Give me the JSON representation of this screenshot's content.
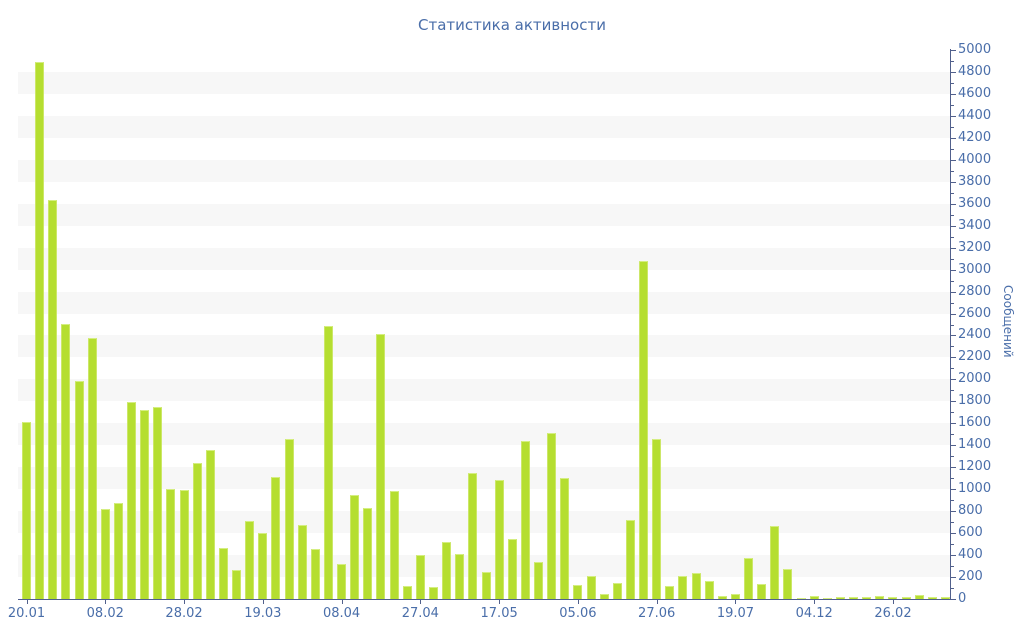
{
  "title": "Статистика активности",
  "colors": {
    "bar": "#b5de30",
    "bar_highlight": "#d5ee82",
    "axis_line": "#51608c",
    "label_text": "#4a6ea9",
    "band_gray": "#f7f7f7",
    "band_white": "#ffffff"
  },
  "chart_data": {
    "type": "bar",
    "title": "Статистика активности",
    "xlabel": "",
    "ylabel": "Сообщений",
    "ylim": [
      0,
      5000
    ],
    "y_tick_step": 200,
    "y_minor_tick_step": 100,
    "legend_position": "none",
    "grid": "alternating horizontal bands, white and light gray, one band per 200 units",
    "values": [
      1615,
      4890,
      3630,
      2500,
      1985,
      2380,
      820,
      870,
      1790,
      1720,
      1750,
      1000,
      990,
      1240,
      1360,
      460,
      265,
      710,
      605,
      1110,
      1460,
      675,
      455,
      2490,
      320,
      950,
      830,
      2410,
      980,
      120,
      405,
      110,
      520,
      410,
      1150,
      250,
      1085,
      550,
      1440,
      340,
      1515,
      1100,
      130,
      210,
      50,
      150,
      720,
      3080,
      1460,
      120,
      210,
      235,
      160,
      30,
      45,
      375,
      135,
      665,
      270,
      10,
      30,
      10,
      15,
      20,
      15,
      25,
      15,
      20,
      35,
      20,
      15
    ],
    "x_ticks": [
      {
        "bar_index": 0,
        "label": "20.01"
      },
      {
        "bar_index": 6,
        "label": "08.02"
      },
      {
        "bar_index": 12,
        "label": "28.02"
      },
      {
        "bar_index": 18,
        "label": "19.03"
      },
      {
        "bar_index": 24,
        "label": "08.04"
      },
      {
        "bar_index": 30,
        "label": "27.04"
      },
      {
        "bar_index": 36,
        "label": "17.05"
      },
      {
        "bar_index": 42,
        "label": "05.06"
      },
      {
        "bar_index": 48,
        "label": "27.06"
      },
      {
        "bar_index": 54,
        "label": "19.07"
      },
      {
        "bar_index": 60,
        "label": "04.12"
      },
      {
        "bar_index": 66,
        "label": "26.02"
      }
    ]
  }
}
